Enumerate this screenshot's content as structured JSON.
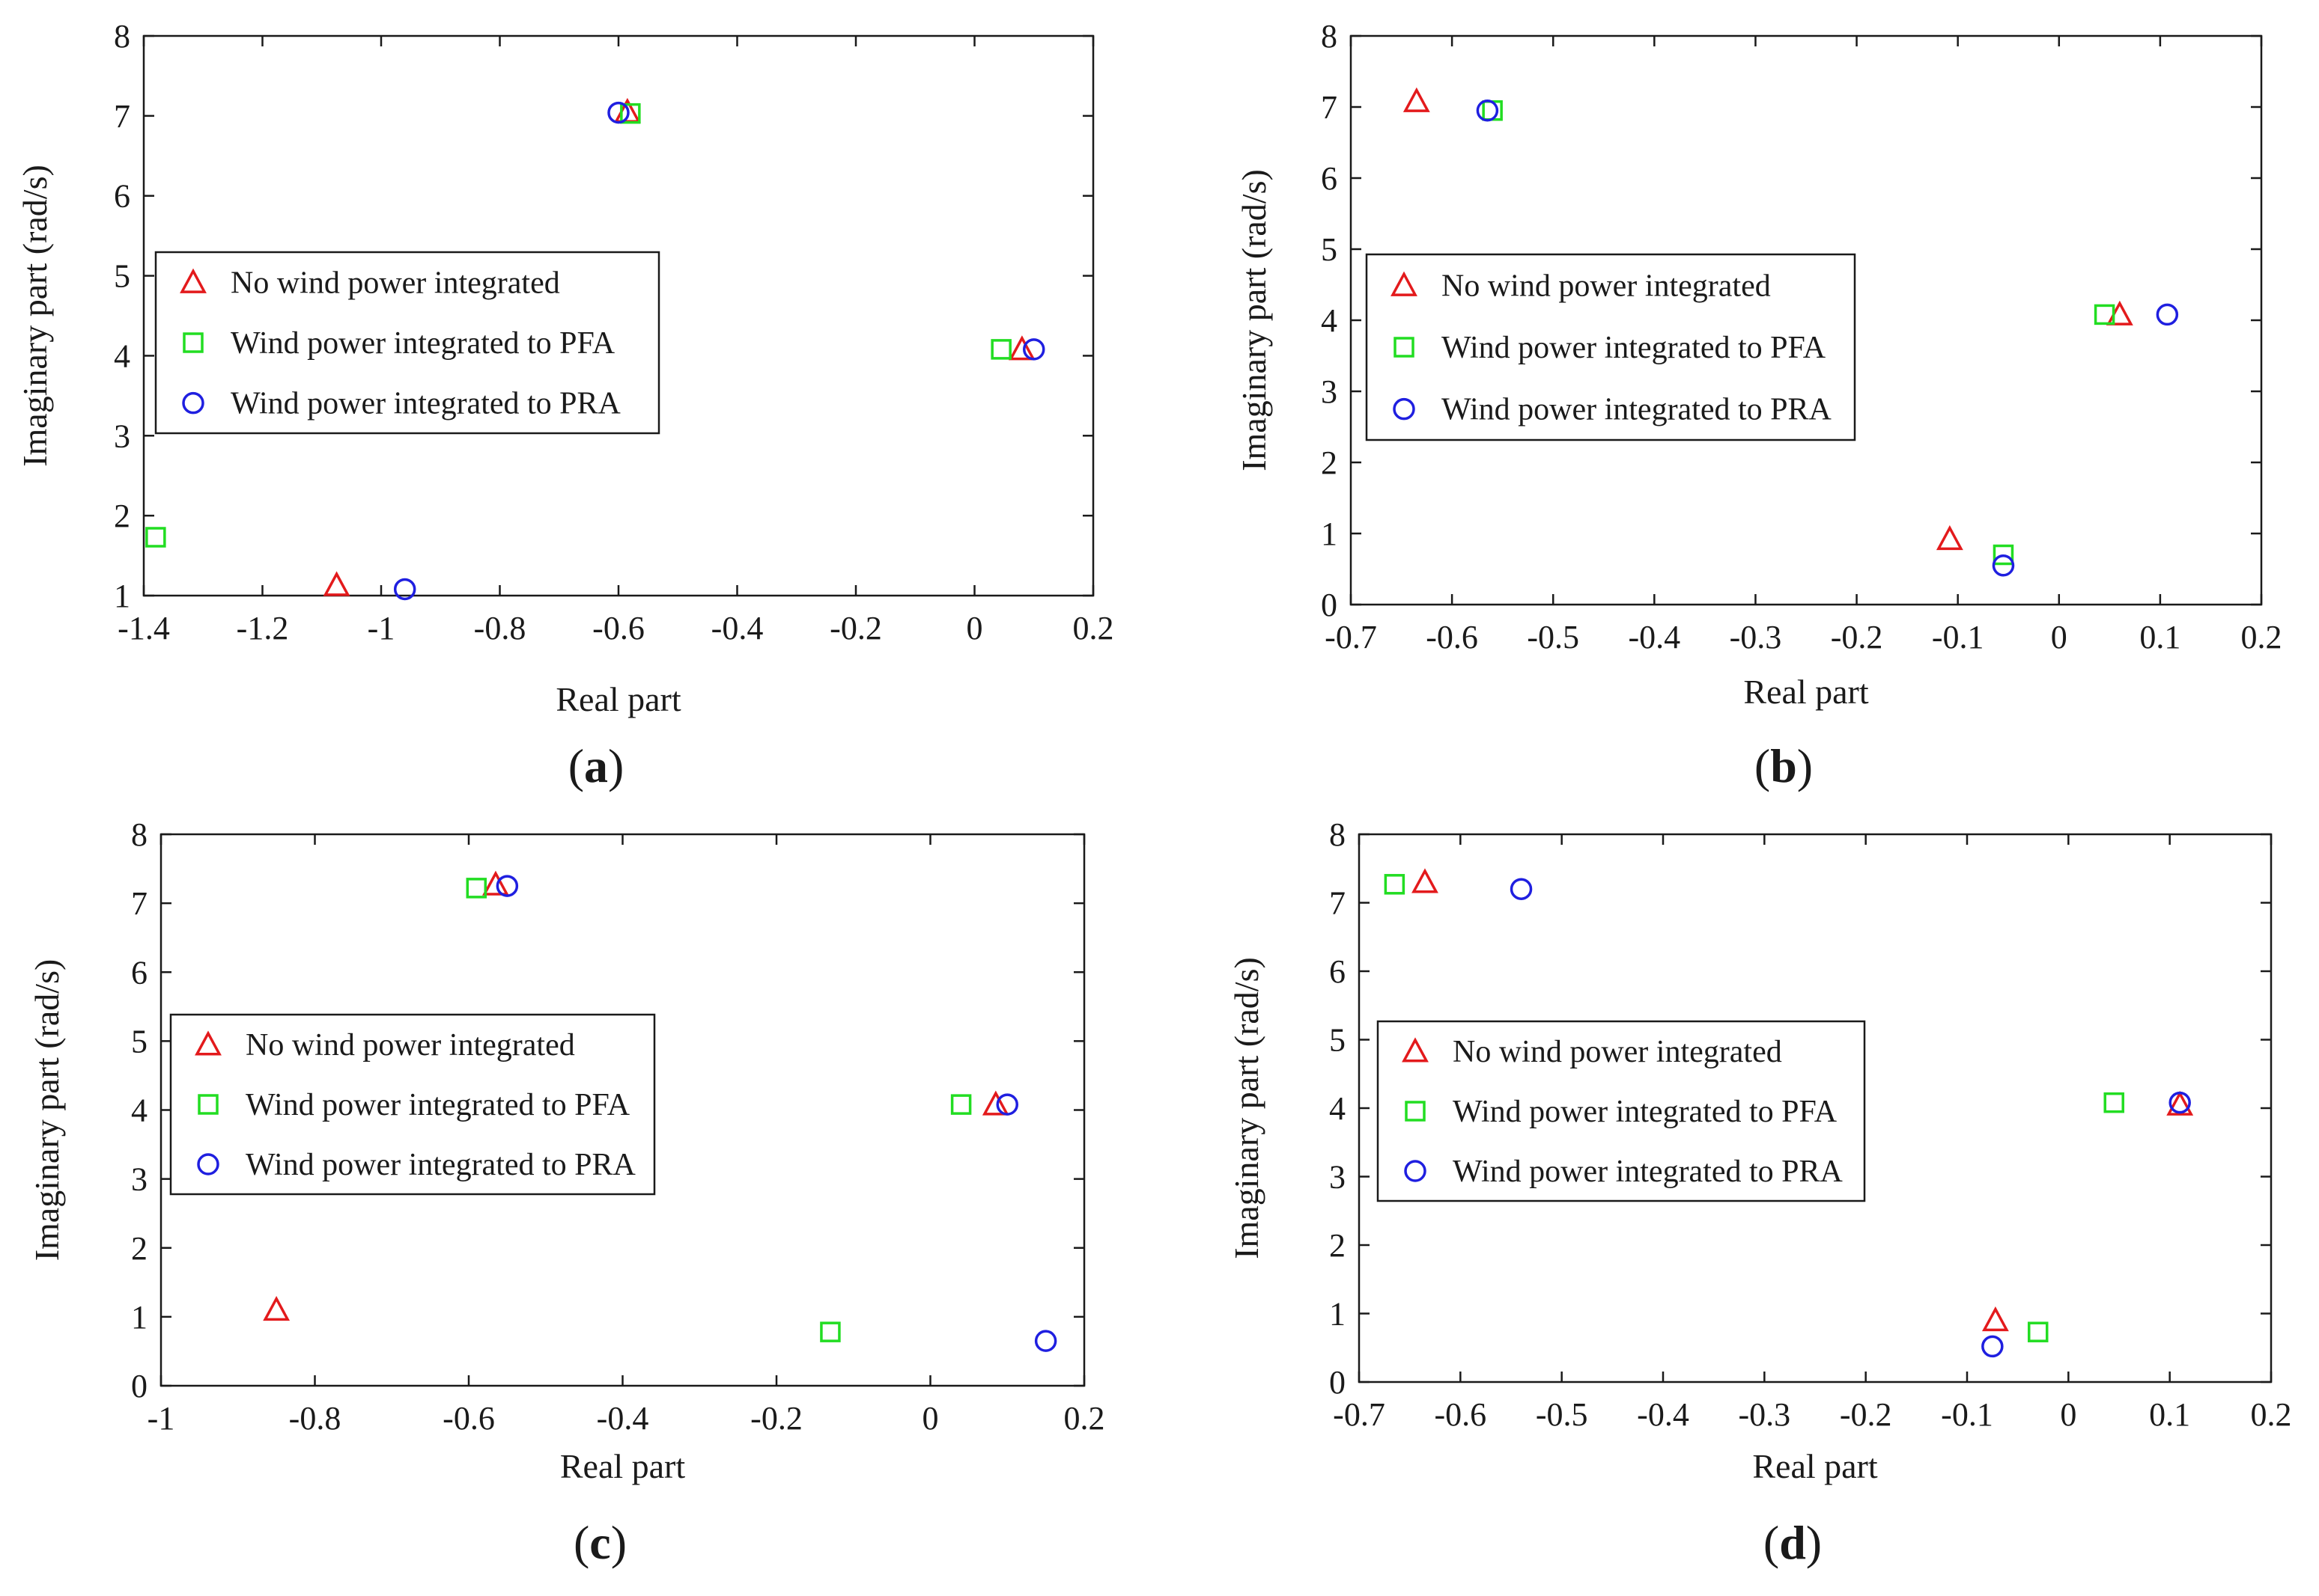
{
  "figure": {
    "series_names": [
      "No wind power integrated",
      "Wind power integrated to PFA",
      "Wind power integrated to PRA"
    ],
    "colors": {
      "no_wind": "#e31a1c",
      "pfa": "#22dd22",
      "pra": "#1f1fe0"
    }
  },
  "chart_data": [
    {
      "panel": "a",
      "type": "scatter",
      "xlabel": "Real part",
      "ylabel": "Imaginary part (rad/s)",
      "xlim": [
        -1.4,
        0.2
      ],
      "ylim": [
        1,
        8
      ],
      "xticks": [
        -1.4,
        -1.2,
        -1,
        -0.8,
        -0.6,
        -0.4,
        -0.2,
        0,
        0.2
      ],
      "xtick_labels": [
        "-1.4",
        "-1.2",
        "-1",
        "-0.8",
        "-0.6",
        "-0.4",
        "-0.2",
        "0",
        "0.2"
      ],
      "yticks": [
        1,
        2,
        3,
        4,
        5,
        6,
        7,
        8
      ],
      "ytick_labels": [
        "1",
        "2",
        "3",
        "4",
        "5",
        "6",
        "7",
        "8"
      ],
      "legend": {
        "position": "left-middle",
        "entries": [
          "No wind power integrated",
          "Wind power integrated to PFA",
          "Wind power integrated to PRA"
        ]
      },
      "series": [
        {
          "name": "No wind power integrated",
          "marker": "triangle",
          "points": [
            {
              "x": -1.075,
              "y": 1.13
            },
            {
              "x": -0.585,
              "y": 7.05
            },
            {
              "x": 0.08,
              "y": 4.08
            }
          ]
        },
        {
          "name": "Wind power integrated to PFA",
          "marker": "square",
          "points": [
            {
              "x": -1.38,
              "y": 1.73
            },
            {
              "x": -0.58,
              "y": 7.03
            },
            {
              "x": 0.045,
              "y": 4.08
            }
          ]
        },
        {
          "name": "Wind power integrated to PRA",
          "marker": "circle",
          "points": [
            {
              "x": -0.96,
              "y": 1.08
            },
            {
              "x": -0.6,
              "y": 7.04
            },
            {
              "x": 0.1,
              "y": 4.08
            }
          ]
        }
      ]
    },
    {
      "panel": "b",
      "type": "scatter",
      "xlabel": "Real part",
      "ylabel": "Imaginary part (rad/s)",
      "xlim": [
        -0.7,
        0.2
      ],
      "ylim": [
        0,
        8
      ],
      "xticks": [
        -0.7,
        -0.6,
        -0.5,
        -0.4,
        -0.3,
        -0.2,
        -0.1,
        0,
        0.1,
        0.2
      ],
      "xtick_labels": [
        "-0.7",
        "-0.6",
        "-0.5",
        "-0.4",
        "-0.3",
        "-0.2",
        "-0.1",
        "0",
        "0.1",
        "0.2"
      ],
      "yticks": [
        0,
        1,
        2,
        3,
        4,
        5,
        6,
        7,
        8
      ],
      "ytick_labels": [
        "0",
        "1",
        "2",
        "3",
        "4",
        "5",
        "6",
        "7",
        "8"
      ],
      "legend": {
        "position": "left-middle",
        "entries": [
          "No wind power integrated",
          "Wind power integrated to PFA",
          "Wind power integrated to PRA"
        ]
      },
      "series": [
        {
          "name": "No wind power integrated",
          "marker": "triangle",
          "points": [
            {
              "x": -0.635,
              "y": 7.08
            },
            {
              "x": -0.108,
              "y": 0.92
            },
            {
              "x": 0.06,
              "y": 4.08
            }
          ]
        },
        {
          "name": "Wind power integrated to PFA",
          "marker": "square",
          "points": [
            {
              "x": -0.56,
              "y": 6.95
            },
            {
              "x": -0.055,
              "y": 0.7
            },
            {
              "x": 0.045,
              "y": 4.08
            }
          ]
        },
        {
          "name": "Wind power integrated to PRA",
          "marker": "circle",
          "points": [
            {
              "x": -0.565,
              "y": 6.95
            },
            {
              "x": -0.055,
              "y": 0.55
            },
            {
              "x": 0.107,
              "y": 4.08
            }
          ]
        }
      ]
    },
    {
      "panel": "c",
      "type": "scatter",
      "xlabel": "Real part",
      "ylabel": "Imaginary part (rad/s)",
      "xlim": [
        -1,
        0.2
      ],
      "ylim": [
        0,
        8
      ],
      "xticks": [
        -1,
        -0.8,
        -0.6,
        -0.4,
        -0.2,
        0,
        0.2
      ],
      "xtick_labels": [
        "-1",
        "-0.8",
        "-0.6",
        "-0.4",
        "-0.2",
        "0",
        "0.2"
      ],
      "yticks": [
        0,
        1,
        2,
        3,
        4,
        5,
        6,
        7,
        8
      ],
      "ytick_labels": [
        "0",
        "1",
        "2",
        "3",
        "4",
        "5",
        "6",
        "7",
        "8"
      ],
      "legend": {
        "position": "left-middle",
        "entries": [
          "No wind power integrated",
          "Wind power integrated to PFA",
          "Wind power integrated to PRA"
        ]
      },
      "series": [
        {
          "name": "No wind power integrated",
          "marker": "triangle",
          "points": [
            {
              "x": -0.85,
              "y": 1.1
            },
            {
              "x": -0.565,
              "y": 7.27
            },
            {
              "x": 0.085,
              "y": 4.08
            }
          ]
        },
        {
          "name": "Wind power integrated to PFA",
          "marker": "square",
          "points": [
            {
              "x": -0.59,
              "y": 7.22
            },
            {
              "x": -0.13,
              "y": 0.78
            },
            {
              "x": 0.04,
              "y": 4.08
            }
          ]
        },
        {
          "name": "Wind power integrated to PRA",
          "marker": "circle",
          "points": [
            {
              "x": -0.55,
              "y": 7.25
            },
            {
              "x": 0.1,
              "y": 4.08
            },
            {
              "x": 0.15,
              "y": 0.65
            }
          ]
        }
      ]
    },
    {
      "panel": "d",
      "type": "scatter",
      "xlabel": "Real part",
      "ylabel": "Imaginary part (rad/s)",
      "xlim": [
        -0.7,
        0.2
      ],
      "ylim": [
        0,
        8
      ],
      "xticks": [
        -0.7,
        -0.6,
        -0.5,
        -0.4,
        -0.3,
        -0.2,
        -0.1,
        0,
        0.1,
        0.2
      ],
      "xtick_labels": [
        "-0.7",
        "-0.6",
        "-0.5",
        "-0.4",
        "-0.3",
        "-0.2",
        "-0.1",
        "0",
        "0.1",
        "0.2"
      ],
      "yticks": [
        0,
        1,
        2,
        3,
        4,
        5,
        6,
        7,
        8
      ],
      "ytick_labels": [
        "0",
        "1",
        "2",
        "3",
        "4",
        "5",
        "6",
        "7",
        "8"
      ],
      "legend": {
        "position": "left-middle",
        "entries": [
          "No wind power integrated",
          "Wind power integrated to PFA",
          "Wind power integrated to PRA"
        ]
      },
      "series": [
        {
          "name": "No wind power integrated",
          "marker": "triangle",
          "points": [
            {
              "x": -0.635,
              "y": 7.3
            },
            {
              "x": -0.072,
              "y": 0.9
            },
            {
              "x": 0.11,
              "y": 4.05
            }
          ]
        },
        {
          "name": "Wind power integrated to PFA",
          "marker": "square",
          "points": [
            {
              "x": -0.665,
              "y": 7.27
            },
            {
              "x": -0.03,
              "y": 0.73
            },
            {
              "x": 0.045,
              "y": 4.08
            }
          ]
        },
        {
          "name": "Wind power integrated to PRA",
          "marker": "circle",
          "points": [
            {
              "x": -0.54,
              "y": 7.2
            },
            {
              "x": -0.075,
              "y": 0.52
            },
            {
              "x": 0.11,
              "y": 4.08
            }
          ]
        }
      ]
    }
  ],
  "panel_labels": [
    {
      "open": "(",
      "letter": "a",
      "close": ")"
    },
    {
      "open": "(",
      "letter": "b",
      "close": ")"
    },
    {
      "open": "(",
      "letter": "c",
      "close": ")"
    },
    {
      "open": "(",
      "letter": "d",
      "close": ")"
    }
  ]
}
